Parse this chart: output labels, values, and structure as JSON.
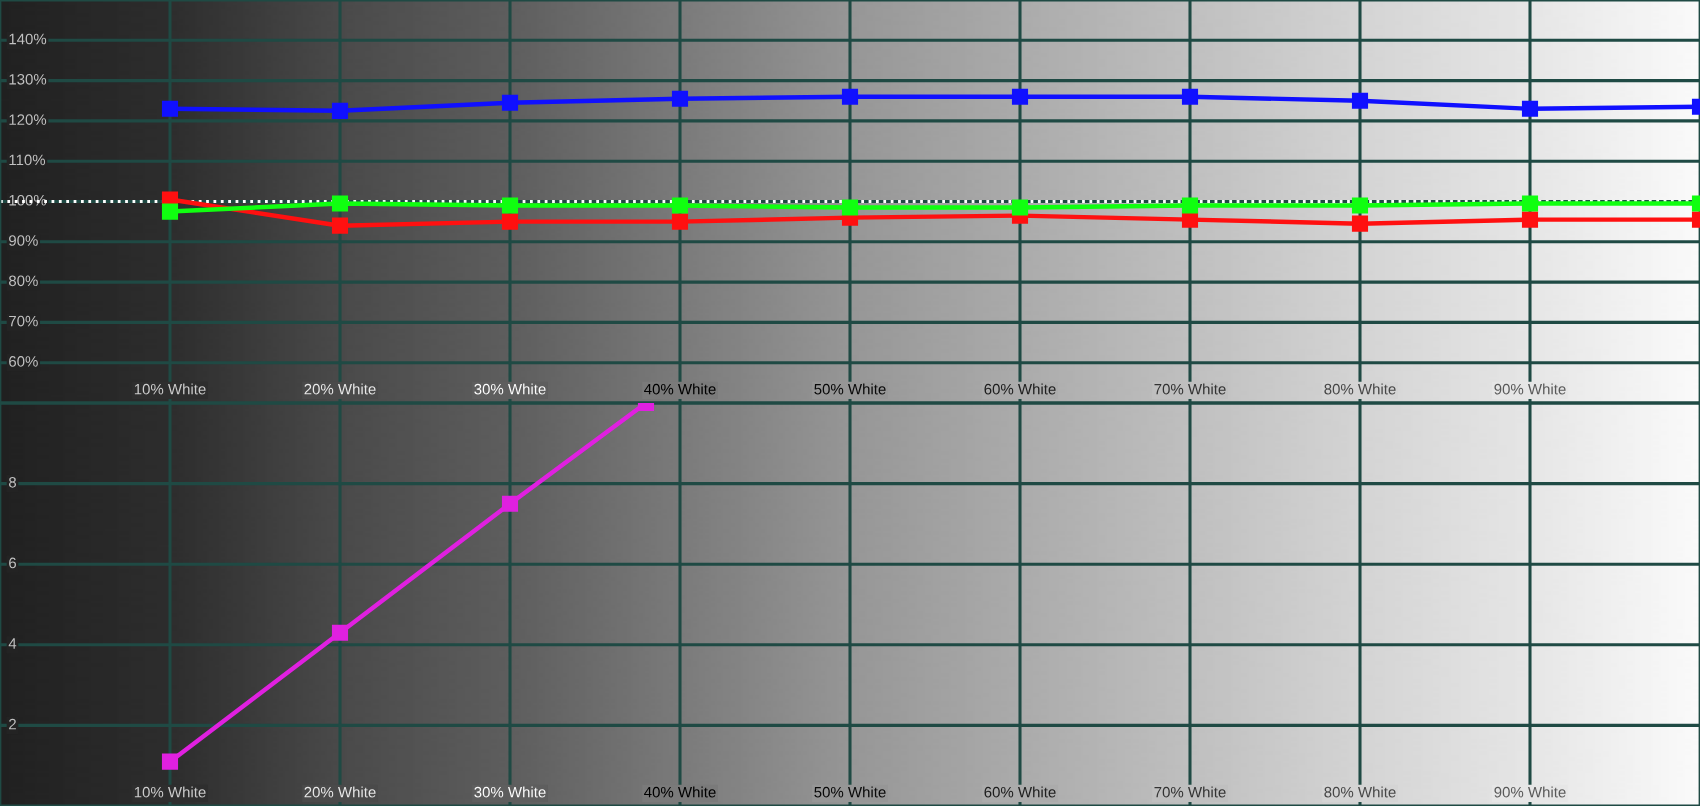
{
  "chart_data": [
    {
      "type": "line",
      "x": [
        10,
        20,
        30,
        40,
        50,
        60,
        70,
        80,
        90,
        100
      ],
      "series": [
        {
          "color": "#ff1010",
          "values": [
            100.5,
            94.0,
            95.0,
            95.0,
            96.0,
            96.5,
            95.5,
            94.5,
            95.5,
            95.5
          ]
        },
        {
          "color": "#10ff10",
          "values": [
            97.5,
            99.5,
            99.0,
            99.0,
            98.5,
            98.5,
            99.0,
            99.0,
            99.5,
            99.5
          ]
        },
        {
          "color": "#1010ff",
          "values": [
            123.0,
            122.5,
            124.5,
            125.5,
            126.0,
            126.0,
            126.0,
            125.0,
            123.0,
            123.5
          ]
        }
      ],
      "xlim": [
        0,
        100
      ],
      "xticks": [
        {
          "value": 10,
          "label": "10% White"
        },
        {
          "value": 20,
          "label": "20% White"
        },
        {
          "value": 30,
          "label": "30% White"
        },
        {
          "value": 40,
          "label": "40% White"
        },
        {
          "value": 50,
          "label": "50% White"
        },
        {
          "value": 60,
          "label": "60% White"
        },
        {
          "value": 70,
          "label": "70% White"
        },
        {
          "value": 80,
          "label": "80% White"
        },
        {
          "value": 90,
          "label": "90% White"
        }
      ],
      "ylim": [
        50,
        150
      ],
      "yticks": [
        {
          "value": 60,
          "label": "60%"
        },
        {
          "value": 70,
          "label": "70%"
        },
        {
          "value": 80,
          "label": "80%"
        },
        {
          "value": 90,
          "label": "90%"
        },
        {
          "value": 100,
          "label": "100%"
        },
        {
          "value": 110,
          "label": "110%"
        },
        {
          "value": 120,
          "label": "120%"
        },
        {
          "value": 130,
          "label": "130%"
        },
        {
          "value": 140,
          "label": "140%"
        }
      ],
      "grid": true,
      "marker": "square",
      "line_style": "solid",
      "ref_lines": [
        {
          "axis": "y",
          "value": 100,
          "color": "#ffffff",
          "line_style": "dotted"
        }
      ]
    },
    {
      "type": "line",
      "series": [
        {
          "color": "#e020e0",
          "x": [
            10,
            20,
            30,
            38
          ],
          "values": [
            1.1,
            4.3,
            7.5,
            10
          ]
        }
      ],
      "xlim": [
        0,
        100
      ],
      "xticks": [
        {
          "value": 10,
          "label": "10% White"
        },
        {
          "value": 20,
          "label": "20% White"
        },
        {
          "value": 30,
          "label": "30% White"
        },
        {
          "value": 40,
          "label": "40% White"
        },
        {
          "value": 50,
          "label": "50% White"
        },
        {
          "value": 60,
          "label": "60% White"
        },
        {
          "value": 70,
          "label": "70% White"
        },
        {
          "value": 80,
          "label": "80% White"
        },
        {
          "value": 90,
          "label": "90% White"
        }
      ],
      "ylim": [
        0,
        10
      ],
      "yticks": [
        2,
        4,
        6,
        8
      ],
      "grid": true,
      "marker": "square",
      "line_style": "solid"
    }
  ]
}
